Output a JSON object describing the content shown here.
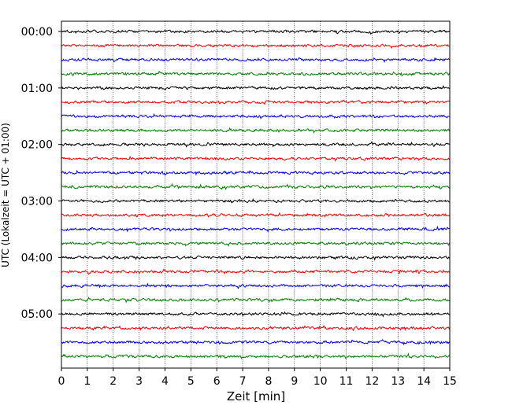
{
  "chart_data": {
    "type": "line",
    "title": "",
    "xlabel": "Zeit  [min]",
    "ylabel": "UTC (Lokalzeit = UTC + 01:00)",
    "xlim": [
      0,
      15
    ],
    "x_ticks": [
      0,
      1,
      2,
      3,
      4,
      5,
      6,
      7,
      8,
      9,
      10,
      11,
      12,
      13,
      14,
      15
    ],
    "grid": "vertical dotted lines at each minute",
    "y_tick_labels": [
      "00:00",
      "01:00",
      "02:00",
      "03:00",
      "04:00",
      "05:00"
    ],
    "traces_per_hour": 4,
    "trace_minutes": 15,
    "trace_start_times": [
      "00:00",
      "00:15",
      "00:30",
      "00:45",
      "01:00",
      "01:15",
      "01:30",
      "01:45",
      "02:00",
      "02:15",
      "02:30",
      "02:45",
      "03:00",
      "03:15",
      "03:30",
      "03:45",
      "04:00",
      "04:15",
      "04:30",
      "04:45",
      "05:00",
      "05:15",
      "05:30",
      "05:45"
    ],
    "series_colors": [
      "#000000",
      "#ff0000",
      "#0000ff",
      "#008000"
    ],
    "trace_style": "low-amplitude seismic noise (helicorder/dayplot)"
  }
}
